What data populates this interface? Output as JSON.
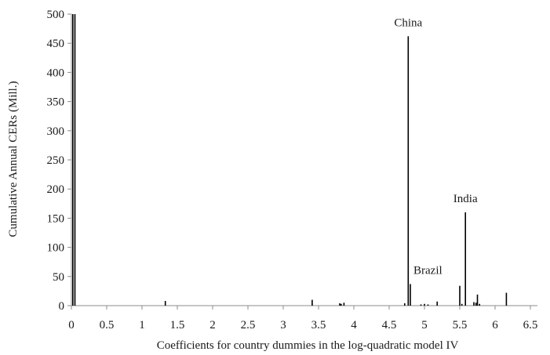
{
  "chart_data": {
    "type": "bar",
    "title": "",
    "xlabel": "Coefficients for country dummies in the log-quadratic model IV",
    "ylabel": "Cumulative Annual CERs (Mill.)",
    "xlim": [
      0,
      6.6
    ],
    "ylim": [
      0,
      500
    ],
    "x_ticks": [
      0,
      0.5,
      1,
      1.5,
      2,
      2.5,
      3,
      3.5,
      4,
      4.5,
      5,
      5.5,
      6,
      6.5
    ],
    "x_tick_labels": [
      "0",
      "0.5",
      "1",
      "1.5",
      "2",
      "2.5",
      "3",
      "3.5",
      "4",
      "4.5",
      "5",
      "5.5",
      "6",
      "6.5"
    ],
    "y_ticks": [
      0,
      50,
      100,
      150,
      200,
      250,
      300,
      350,
      400,
      450,
      500
    ],
    "y_tick_labels": [
      "0",
      "50",
      "100",
      "150",
      "200",
      "250",
      "300",
      "350",
      "400",
      "450",
      "500"
    ],
    "grid": false,
    "legend": "none",
    "bar_color": "#000000",
    "points": [
      {
        "x": 0.02,
        "y": 500
      },
      {
        "x": 0.05,
        "y": 500
      },
      {
        "x": 1.33,
        "y": 8
      },
      {
        "x": 3.41,
        "y": 10
      },
      {
        "x": 3.8,
        "y": 4
      },
      {
        "x": 3.82,
        "y": 3
      },
      {
        "x": 3.86,
        "y": 5
      },
      {
        "x": 4.72,
        "y": 4
      },
      {
        "x": 4.77,
        "y": 462
      },
      {
        "x": 4.8,
        "y": 37
      },
      {
        "x": 4.95,
        "y": 2
      },
      {
        "x": 5.0,
        "y": 3
      },
      {
        "x": 5.05,
        "y": 2
      },
      {
        "x": 5.18,
        "y": 7
      },
      {
        "x": 5.5,
        "y": 34
      },
      {
        "x": 5.53,
        "y": 3
      },
      {
        "x": 5.58,
        "y": 160
      },
      {
        "x": 5.7,
        "y": 6
      },
      {
        "x": 5.73,
        "y": 5
      },
      {
        "x": 5.75,
        "y": 19
      },
      {
        "x": 5.78,
        "y": 3
      },
      {
        "x": 6.16,
        "y": 22
      }
    ],
    "annotations": [
      {
        "text": "China",
        "x": 4.77,
        "y": 462
      },
      {
        "text": "Brazil",
        "x": 4.8,
        "y": 37
      },
      {
        "text": "India",
        "x": 5.58,
        "y": 160
      }
    ]
  }
}
